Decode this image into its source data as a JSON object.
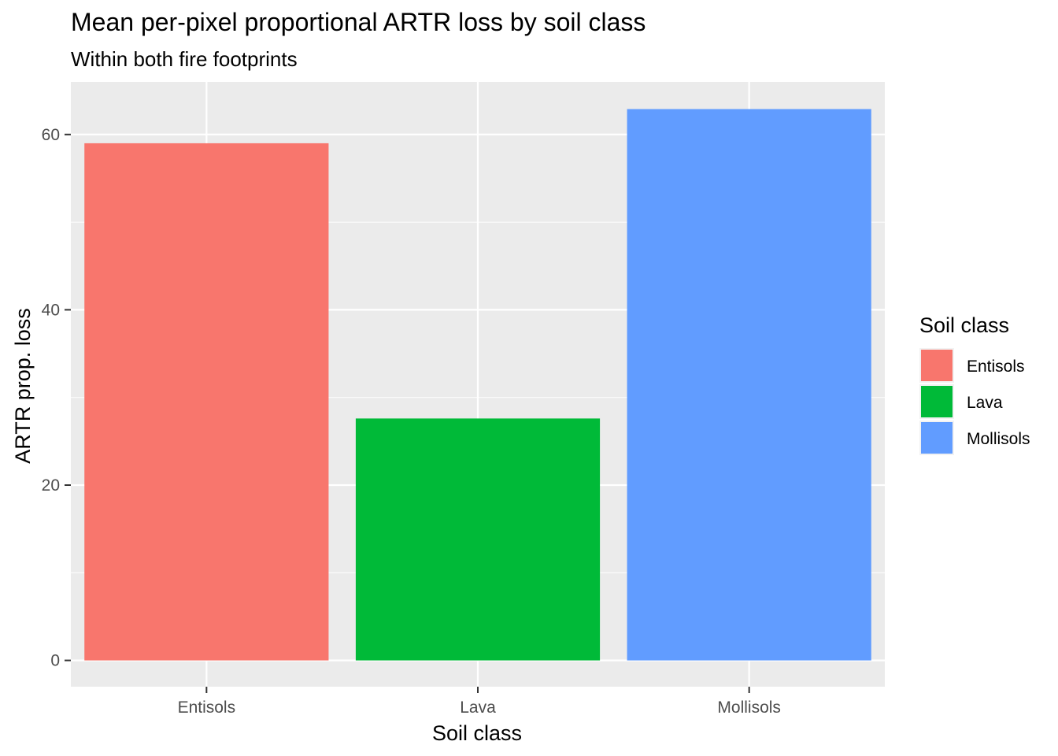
{
  "chart_data": {
    "type": "bar",
    "title": "Mean per-pixel proportional ARTR loss by soil class",
    "subtitle": "Within both fire footprints",
    "xlabel": "Soil class",
    "ylabel": "ARTR prop. loss",
    "categories": [
      "Entisols",
      "Lava",
      "Mollisols"
    ],
    "values": [
      59.0,
      27.6,
      62.9
    ],
    "colors": [
      "#F8766D",
      "#00BA38",
      "#619CFF"
    ],
    "ylim": [
      -3,
      66
    ],
    "yticks": [
      0,
      20,
      40,
      60
    ],
    "grid": true,
    "panel_background": "#EBEBEB",
    "legend": {
      "title": "Soil class",
      "position": "right",
      "items": [
        "Entisols",
        "Lava",
        "Mollisols"
      ]
    }
  }
}
